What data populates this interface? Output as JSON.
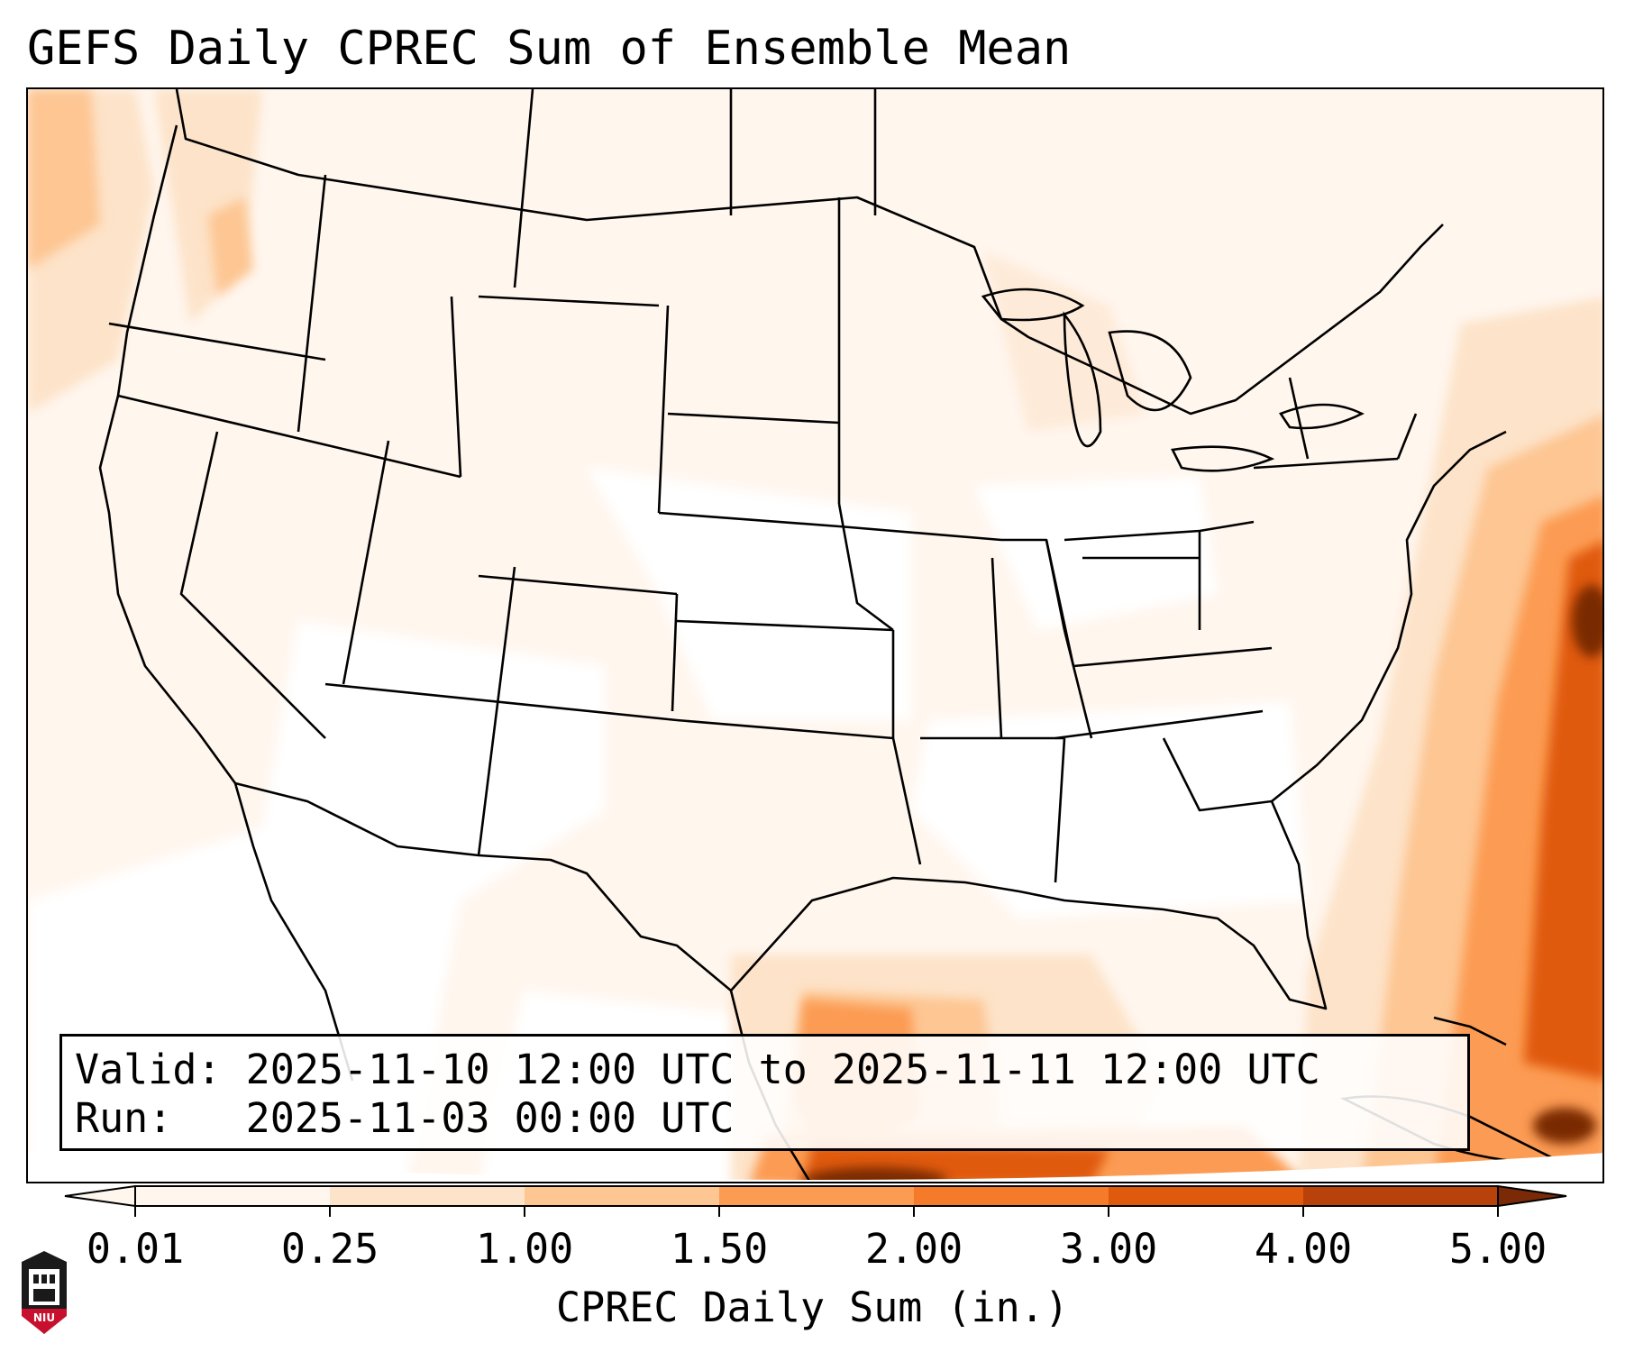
{
  "title": "GEFS Daily CPREC Sum of Ensemble Mean",
  "info": {
    "valid_label": "Valid:",
    "valid_value": "2025-11-10 12:00 UTC to 2025-11-11 12:00 UTC",
    "run_label": "Run:",
    "run_value": "2025-11-03 00:00 UTC"
  },
  "colorbar": {
    "title": "CPREC Daily Sum (in.)",
    "ticks": [
      "0.01",
      "0.25",
      "1.00",
      "1.50",
      "2.00",
      "3.00",
      "4.00",
      "5.00"
    ],
    "colors": [
      "#fff6ee",
      "#fde3c9",
      "#fdc693",
      "#fc9b52",
      "#f57a29",
      "#e05a0d",
      "#b8420a",
      "#7a2a06"
    ],
    "extend": "both"
  },
  "colors": {
    "land_border": "#000000",
    "background": "#ffffff"
  },
  "logo": {
    "icon": "niu-university-logo",
    "text": "NIU"
  }
}
